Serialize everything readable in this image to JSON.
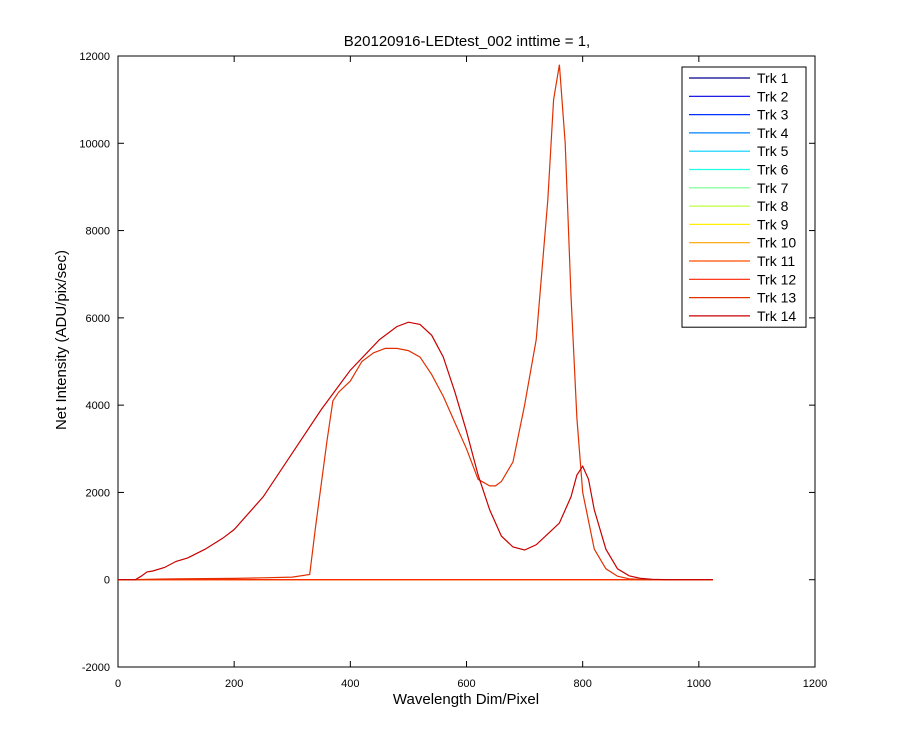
{
  "chart_data": {
    "type": "line",
    "title": "B20120916-LEDtest_002 inttime = 1,",
    "xlabel": "Wavelength Dim/Pixel",
    "ylabel": "Net Intensity (ADU/pix/sec)",
    "xlim": [
      0,
      1200
    ],
    "ylim": [
      -2000,
      12000
    ],
    "xticks": [
      0,
      200,
      400,
      600,
      800,
      1000,
      1200
    ],
    "yticks": [
      -2000,
      0,
      2000,
      4000,
      6000,
      8000,
      10000,
      12000
    ],
    "grid": false,
    "legend_position": "top-right",
    "series": [
      {
        "name": "Trk 1",
        "color": "#00008f",
        "x": [
          0,
          1024
        ],
        "y": [
          0,
          0
        ]
      },
      {
        "name": "Trk 2",
        "color": "#0000df",
        "x": [
          0,
          1024
        ],
        "y": [
          0,
          0
        ]
      },
      {
        "name": "Trk 3",
        "color": "#0030ff",
        "x": [
          0,
          1024
        ],
        "y": [
          0,
          0
        ]
      },
      {
        "name": "Trk 4",
        "color": "#0080ff",
        "x": [
          0,
          1024
        ],
        "y": [
          0,
          0
        ]
      },
      {
        "name": "Trk 5",
        "color": "#00cfff",
        "x": [
          0,
          1024
        ],
        "y": [
          0,
          0
        ]
      },
      {
        "name": "Trk 6",
        "color": "#20ffdf",
        "x": [
          0,
          1024
        ],
        "y": [
          0,
          0
        ]
      },
      {
        "name": "Trk 7",
        "color": "#70ff8f",
        "x": [
          0,
          1024
        ],
        "y": [
          0,
          0
        ]
      },
      {
        "name": "Trk 8",
        "color": "#bfff40",
        "x": [
          0,
          1024
        ],
        "y": [
          0,
          0
        ]
      },
      {
        "name": "Trk 9",
        "color": "#ffef00",
        "x": [
          0,
          1024
        ],
        "y": [
          0,
          0
        ]
      },
      {
        "name": "Trk 10",
        "color": "#ffa000",
        "x": [
          0,
          1024
        ],
        "y": [
          0,
          0
        ]
      },
      {
        "name": "Trk 11",
        "color": "#ff5000",
        "x": [
          0,
          1024
        ],
        "y": [
          0,
          0
        ]
      },
      {
        "name": "Trk 12",
        "color": "#ff2000",
        "x": [
          0,
          1024
        ],
        "y": [
          0,
          0
        ]
      },
      {
        "name": "Trk 13",
        "color": "#e03000",
        "x": [
          0,
          30,
          40,
          50,
          70,
          100,
          150,
          200,
          250,
          300,
          330,
          340,
          350,
          360,
          370,
          380,
          400,
          420,
          440,
          460,
          480,
          500,
          520,
          540,
          560,
          580,
          600,
          620,
          640,
          650,
          660,
          680,
          700,
          720,
          740,
          750,
          760,
          770,
          780,
          790,
          800,
          820,
          840,
          860,
          880,
          900,
          950,
          1024
        ],
        "y": [
          0,
          0,
          5,
          10,
          15,
          20,
          25,
          30,
          45,
          60,
          120,
          1200,
          2200,
          3200,
          4100,
          4300,
          4550,
          5000,
          5200,
          5300,
          5300,
          5250,
          5100,
          4700,
          4200,
          3600,
          3000,
          2300,
          2150,
          2150,
          2250,
          2700,
          4000,
          5500,
          8700,
          11000,
          11800,
          10000,
          6500,
          3700,
          2000,
          700,
          250,
          80,
          20,
          5,
          0,
          0
        ]
      },
      {
        "name": "Trk 14",
        "color": "#c80000",
        "x": [
          0,
          30,
          40,
          50,
          60,
          80,
          100,
          120,
          150,
          180,
          200,
          250,
          300,
          350,
          400,
          450,
          480,
          500,
          520,
          540,
          560,
          580,
          600,
          620,
          640,
          660,
          680,
          700,
          720,
          740,
          760,
          780,
          790,
          800,
          810,
          820,
          840,
          860,
          880,
          900,
          920,
          950,
          1024
        ],
        "y": [
          0,
          0,
          80,
          180,
          200,
          280,
          420,
          500,
          700,
          950,
          1150,
          1900,
          2900,
          3900,
          4800,
          5500,
          5800,
          5900,
          5850,
          5600,
          5100,
          4300,
          3400,
          2400,
          1600,
          1000,
          750,
          680,
          800,
          1050,
          1300,
          1900,
          2400,
          2600,
          2300,
          1600,
          700,
          250,
          90,
          30,
          10,
          0,
          0
        ]
      }
    ]
  }
}
